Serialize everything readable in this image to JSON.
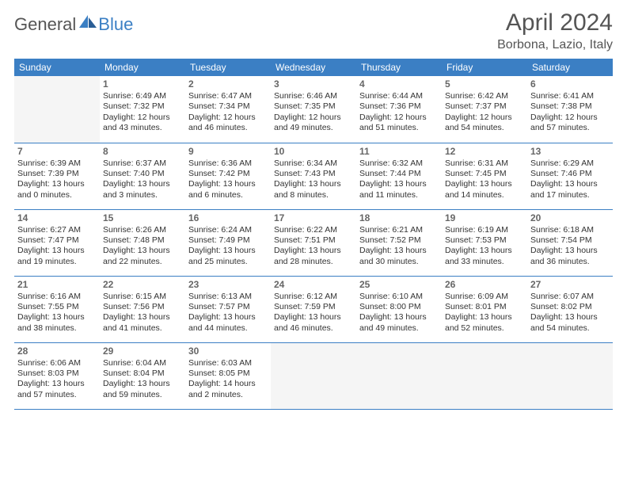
{
  "brand": {
    "part1": "General",
    "part2": "Blue"
  },
  "title": "April 2024",
  "location": "Borbona, Lazio, Italy",
  "colors": {
    "accent": "#3b7fc4",
    "text": "#333333",
    "muted": "#666666",
    "bg": "#ffffff",
    "empty": "#f5f5f5"
  },
  "day_headers": [
    "Sunday",
    "Monday",
    "Tuesday",
    "Wednesday",
    "Thursday",
    "Friday",
    "Saturday"
  ],
  "weeks": [
    [
      null,
      {
        "d": "1",
        "sr": "6:49 AM",
        "ss": "7:32 PM",
        "dl": "12 hours and 43 minutes."
      },
      {
        "d": "2",
        "sr": "6:47 AM",
        "ss": "7:34 PM",
        "dl": "12 hours and 46 minutes."
      },
      {
        "d": "3",
        "sr": "6:46 AM",
        "ss": "7:35 PM",
        "dl": "12 hours and 49 minutes."
      },
      {
        "d": "4",
        "sr": "6:44 AM",
        "ss": "7:36 PM",
        "dl": "12 hours and 51 minutes."
      },
      {
        "d": "5",
        "sr": "6:42 AM",
        "ss": "7:37 PM",
        "dl": "12 hours and 54 minutes."
      },
      {
        "d": "6",
        "sr": "6:41 AM",
        "ss": "7:38 PM",
        "dl": "12 hours and 57 minutes."
      }
    ],
    [
      {
        "d": "7",
        "sr": "6:39 AM",
        "ss": "7:39 PM",
        "dl": "13 hours and 0 minutes."
      },
      {
        "d": "8",
        "sr": "6:37 AM",
        "ss": "7:40 PM",
        "dl": "13 hours and 3 minutes."
      },
      {
        "d": "9",
        "sr": "6:36 AM",
        "ss": "7:42 PM",
        "dl": "13 hours and 6 minutes."
      },
      {
        "d": "10",
        "sr": "6:34 AM",
        "ss": "7:43 PM",
        "dl": "13 hours and 8 minutes."
      },
      {
        "d": "11",
        "sr": "6:32 AM",
        "ss": "7:44 PM",
        "dl": "13 hours and 11 minutes."
      },
      {
        "d": "12",
        "sr": "6:31 AM",
        "ss": "7:45 PM",
        "dl": "13 hours and 14 minutes."
      },
      {
        "d": "13",
        "sr": "6:29 AM",
        "ss": "7:46 PM",
        "dl": "13 hours and 17 minutes."
      }
    ],
    [
      {
        "d": "14",
        "sr": "6:27 AM",
        "ss": "7:47 PM",
        "dl": "13 hours and 19 minutes."
      },
      {
        "d": "15",
        "sr": "6:26 AM",
        "ss": "7:48 PM",
        "dl": "13 hours and 22 minutes."
      },
      {
        "d": "16",
        "sr": "6:24 AM",
        "ss": "7:49 PM",
        "dl": "13 hours and 25 minutes."
      },
      {
        "d": "17",
        "sr": "6:22 AM",
        "ss": "7:51 PM",
        "dl": "13 hours and 28 minutes."
      },
      {
        "d": "18",
        "sr": "6:21 AM",
        "ss": "7:52 PM",
        "dl": "13 hours and 30 minutes."
      },
      {
        "d": "19",
        "sr": "6:19 AM",
        "ss": "7:53 PM",
        "dl": "13 hours and 33 minutes."
      },
      {
        "d": "20",
        "sr": "6:18 AM",
        "ss": "7:54 PM",
        "dl": "13 hours and 36 minutes."
      }
    ],
    [
      {
        "d": "21",
        "sr": "6:16 AM",
        "ss": "7:55 PM",
        "dl": "13 hours and 38 minutes."
      },
      {
        "d": "22",
        "sr": "6:15 AM",
        "ss": "7:56 PM",
        "dl": "13 hours and 41 minutes."
      },
      {
        "d": "23",
        "sr": "6:13 AM",
        "ss": "7:57 PM",
        "dl": "13 hours and 44 minutes."
      },
      {
        "d": "24",
        "sr": "6:12 AM",
        "ss": "7:59 PM",
        "dl": "13 hours and 46 minutes."
      },
      {
        "d": "25",
        "sr": "6:10 AM",
        "ss": "8:00 PM",
        "dl": "13 hours and 49 minutes."
      },
      {
        "d": "26",
        "sr": "6:09 AM",
        "ss": "8:01 PM",
        "dl": "13 hours and 52 minutes."
      },
      {
        "d": "27",
        "sr": "6:07 AM",
        "ss": "8:02 PM",
        "dl": "13 hours and 54 minutes."
      }
    ],
    [
      {
        "d": "28",
        "sr": "6:06 AM",
        "ss": "8:03 PM",
        "dl": "13 hours and 57 minutes."
      },
      {
        "d": "29",
        "sr": "6:04 AM",
        "ss": "8:04 PM",
        "dl": "13 hours and 59 minutes."
      },
      {
        "d": "30",
        "sr": "6:03 AM",
        "ss": "8:05 PM",
        "dl": "14 hours and 2 minutes."
      },
      null,
      null,
      null,
      null
    ]
  ],
  "labels": {
    "sunrise": "Sunrise:",
    "sunset": "Sunset:",
    "daylight": "Daylight:"
  }
}
